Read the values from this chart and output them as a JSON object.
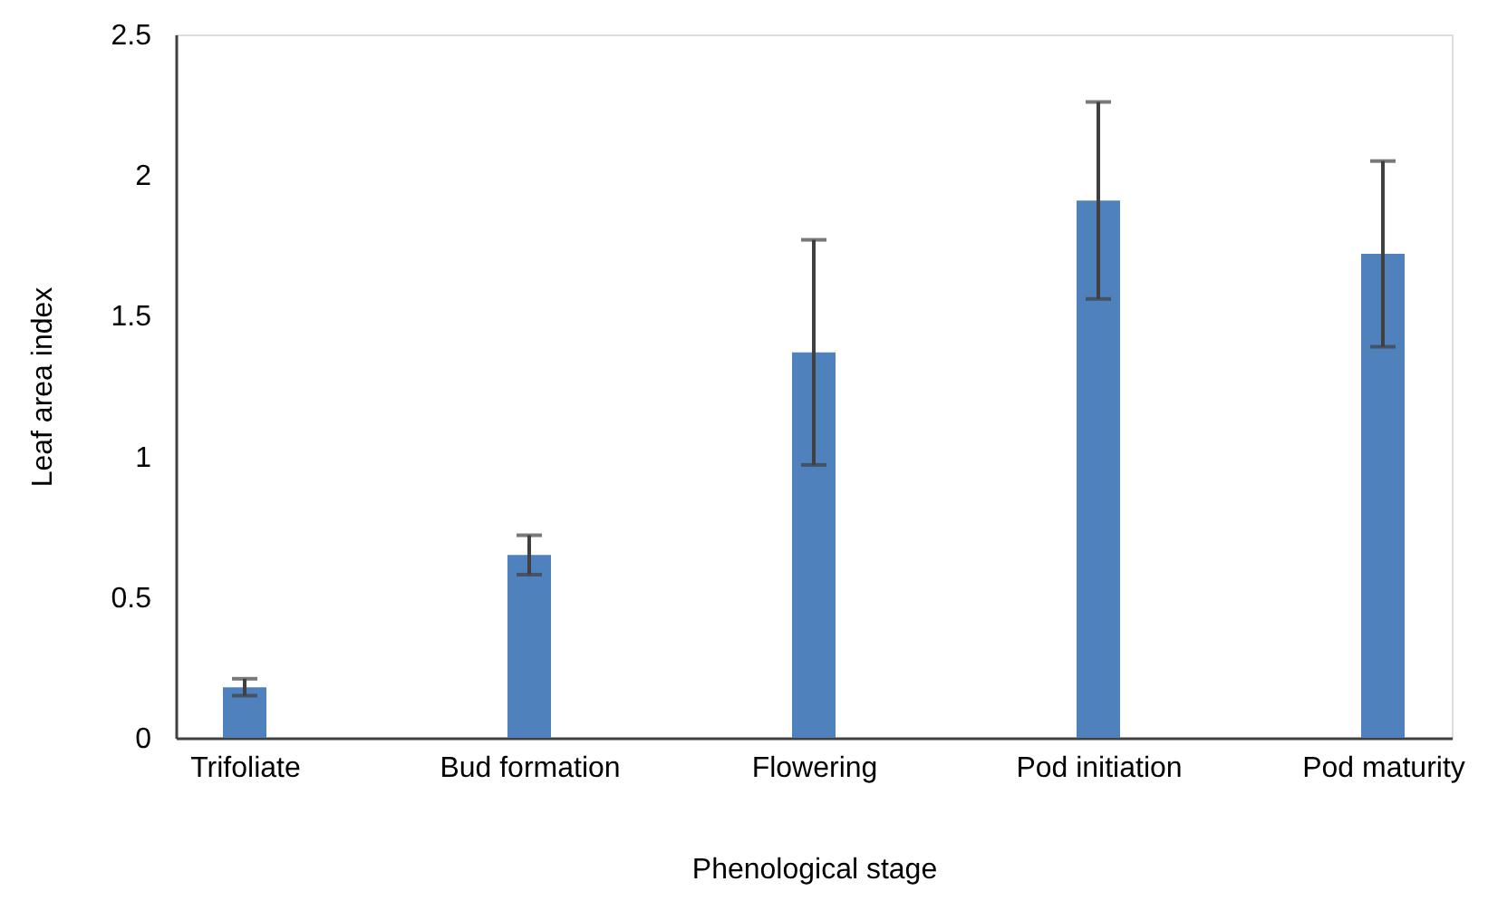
{
  "chart_data": {
    "type": "bar",
    "xlabel": "Phenological stage",
    "ylabel": "Leaf area index",
    "categories": [
      "Trifoliate",
      "Bud formation",
      "Flowering",
      "Pod initiation",
      "Pod maturity"
    ],
    "values": [
      0.18,
      0.65,
      1.37,
      1.91,
      1.72
    ],
    "errors": [
      0.03,
      0.07,
      0.4,
      0.35,
      0.33
    ],
    "color": "#4f81bd",
    "ylim": [
      0,
      2.5
    ],
    "yticks": [
      0,
      0.5,
      1,
      1.5,
      2,
      2.5
    ],
    "grid": false
  }
}
